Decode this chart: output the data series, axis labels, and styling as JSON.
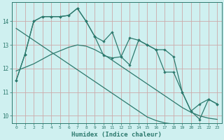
{
  "xlabel": "Humidex (Indice chaleur)",
  "ylabel": "",
  "bg_color": "#cff0f0",
  "grid_color": "#ccaaaa",
  "line_color": "#2d7a6e",
  "xlim": [
    -0.5,
    23.5
  ],
  "ylim": [
    9.7,
    14.8
  ],
  "x": [
    0,
    1,
    2,
    3,
    4,
    5,
    6,
    7,
    8,
    9,
    10,
    11,
    12,
    13,
    14,
    15,
    16,
    17,
    18,
    19,
    20,
    21,
    22,
    23
  ],
  "y_upper": [
    11.5,
    12.6,
    14.0,
    14.2,
    14.2,
    14.2,
    14.25,
    14.55,
    14.0,
    13.35,
    13.15,
    13.55,
    12.5,
    13.3,
    13.2,
    13.0,
    12.8,
    12.8,
    12.5,
    11.0,
    10.2,
    10.5,
    10.7,
    10.5
  ],
  "y_lower": [
    11.5,
    12.6,
    14.0,
    14.2,
    14.2,
    14.2,
    14.25,
    14.55,
    14.0,
    13.35,
    12.55,
    12.45,
    12.5,
    12.15,
    13.2,
    13.0,
    12.8,
    11.85,
    11.85,
    11.0,
    10.2,
    9.85,
    10.7,
    10.5
  ],
  "y_trend1": [
    13.7,
    13.45,
    13.2,
    12.95,
    12.7,
    12.45,
    12.2,
    11.95,
    11.7,
    11.45,
    11.2,
    10.95,
    10.7,
    10.45,
    10.2,
    9.95,
    9.8,
    9.7,
    9.65,
    9.6,
    9.55,
    9.5,
    9.5,
    9.5
  ],
  "y_trend2": [
    11.9,
    12.05,
    12.2,
    12.4,
    12.6,
    12.75,
    12.9,
    13.0,
    12.95,
    12.8,
    12.6,
    12.35,
    12.1,
    11.85,
    11.6,
    11.35,
    11.1,
    10.85,
    10.6,
    10.35,
    10.15,
    10.0,
    9.9,
    9.85
  ]
}
